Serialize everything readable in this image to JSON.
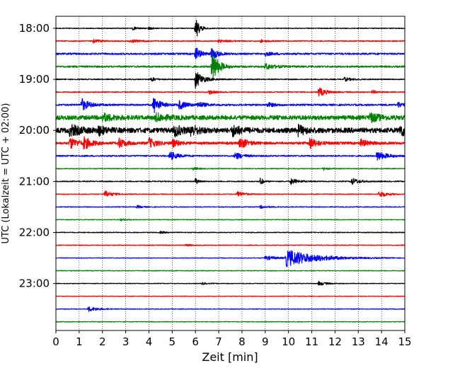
{
  "chart_data": {
    "type": "line",
    "title": "",
    "xlabel": "Zeit  [min]",
    "ylabel": "UTC (Lokalzeit = UTC + 02:00)",
    "xlim": [
      0,
      15
    ],
    "x_ticks": [
      0,
      1,
      2,
      3,
      4,
      5,
      6,
      7,
      8,
      9,
      10,
      11,
      12,
      13,
      14,
      15
    ],
    "y_ticks": [
      "18:00",
      "19:00",
      "20:00",
      "21:00",
      "22:00",
      "23:00"
    ],
    "grid": "vertical dotted lines at each minute",
    "row_interval_min": 15,
    "trace_colors": [
      "#000000",
      "#ff0000",
      "#0000ff",
      "#008000"
    ],
    "rows": [
      {
        "start": "18:00",
        "color": "#000000",
        "noise": 0.12,
        "events": [
          {
            "t": 6.0,
            "amp": 3.6,
            "dur": 0.15
          },
          {
            "t": 3.3,
            "amp": 0.4,
            "dur": 0.2
          },
          {
            "t": 4.0,
            "amp": 0.35,
            "dur": 0.2
          }
        ]
      },
      {
        "start": "18:15",
        "color": "#ff0000",
        "noise": 0.15,
        "events": [
          {
            "t": 1.6,
            "amp": 0.5,
            "dur": 0.3
          },
          {
            "t": 3.2,
            "amp": 0.5,
            "dur": 0.3
          },
          {
            "t": 7.0,
            "amp": 0.5,
            "dur": 0.3
          },
          {
            "t": 8.8,
            "amp": 0.4,
            "dur": 0.3
          }
        ]
      },
      {
        "start": "18:30",
        "color": "#0000ff",
        "noise": 0.25,
        "events": [
          {
            "t": 6.0,
            "amp": 2.0,
            "dur": 0.2
          },
          {
            "t": 6.7,
            "amp": 2.0,
            "dur": 0.2
          },
          {
            "t": 9.0,
            "amp": 0.5,
            "dur": 0.3
          }
        ]
      },
      {
        "start": "18:45",
        "color": "#008000",
        "noise": 0.25,
        "events": [
          {
            "t": 6.7,
            "amp": 5.0,
            "dur": 0.25
          },
          {
            "t": 9.0,
            "amp": 0.8,
            "dur": 0.4
          }
        ]
      },
      {
        "start": "19:00",
        "color": "#000000",
        "noise": 0.15,
        "events": [
          {
            "t": 6.0,
            "amp": 2.5,
            "dur": 0.3
          },
          {
            "t": 4.1,
            "amp": 0.6,
            "dur": 0.2
          },
          {
            "t": 12.4,
            "amp": 0.5,
            "dur": 0.3
          }
        ]
      },
      {
        "start": "19:15",
        "color": "#ff0000",
        "noise": 0.15,
        "events": [
          {
            "t": 11.3,
            "amp": 1.3,
            "dur": 0.3
          },
          {
            "t": 13.6,
            "amp": 0.5,
            "dur": 0.2
          },
          {
            "t": 6.6,
            "amp": 0.6,
            "dur": 0.2
          }
        ]
      },
      {
        "start": "19:30",
        "color": "#0000ff",
        "noise": 0.25,
        "events": [
          {
            "t": 1.1,
            "amp": 1.8,
            "dur": 0.3
          },
          {
            "t": 4.2,
            "amp": 2.5,
            "dur": 0.25
          },
          {
            "t": 5.3,
            "amp": 1.2,
            "dur": 0.3
          },
          {
            "t": 6.1,
            "amp": 0.8,
            "dur": 0.3
          },
          {
            "t": 9.1,
            "amp": 0.6,
            "dur": 0.3
          },
          {
            "t": 14.7,
            "amp": 0.8,
            "dur": 0.3
          }
        ]
      },
      {
        "start": "19:45",
        "color": "#008000",
        "noise": 0.6,
        "events": [
          {
            "t": 2.0,
            "amp": 1.0,
            "dur": 0.4
          },
          {
            "t": 4.3,
            "amp": 1.0,
            "dur": 0.4
          },
          {
            "t": 13.5,
            "amp": 1.2,
            "dur": 0.4
          }
        ]
      },
      {
        "start": "20:00",
        "color": "#000000",
        "noise": 0.7,
        "events": [
          {
            "t": 0.6,
            "amp": 1.5,
            "dur": 0.4
          },
          {
            "t": 1.8,
            "amp": 1.2,
            "dur": 0.3
          },
          {
            "t": 5.1,
            "amp": 1.5,
            "dur": 0.3
          },
          {
            "t": 5.8,
            "amp": 1.3,
            "dur": 0.3
          },
          {
            "t": 7.6,
            "amp": 1.5,
            "dur": 0.3
          },
          {
            "t": 10.4,
            "amp": 1.3,
            "dur": 0.3
          },
          {
            "t": 14.8,
            "amp": 1.5,
            "dur": 0.3
          }
        ]
      },
      {
        "start": "20:15",
        "color": "#ff0000",
        "noise": 0.35,
        "events": [
          {
            "t": 0.6,
            "amp": 1.6,
            "dur": 0.3
          },
          {
            "t": 1.2,
            "amp": 1.6,
            "dur": 0.3
          },
          {
            "t": 2.7,
            "amp": 1.3,
            "dur": 0.3
          },
          {
            "t": 4.0,
            "amp": 1.4,
            "dur": 0.3
          },
          {
            "t": 5.0,
            "amp": 1.0,
            "dur": 0.3
          },
          {
            "t": 7.9,
            "amp": 1.6,
            "dur": 0.3
          },
          {
            "t": 10.9,
            "amp": 1.6,
            "dur": 0.3
          },
          {
            "t": 13.1,
            "amp": 1.0,
            "dur": 0.3
          }
        ]
      },
      {
        "start": "20:30",
        "color": "#0000ff",
        "noise": 0.2,
        "events": [
          {
            "t": 4.9,
            "amp": 1.3,
            "dur": 0.3
          },
          {
            "t": 7.7,
            "amp": 1.0,
            "dur": 0.3
          },
          {
            "t": 13.8,
            "amp": 1.3,
            "dur": 0.4
          }
        ]
      },
      {
        "start": "20:45",
        "color": "#008000",
        "noise": 0.12,
        "events": [
          {
            "t": 5.9,
            "amp": 0.5,
            "dur": 0.2
          },
          {
            "t": 11.5,
            "amp": 0.4,
            "dur": 0.2
          }
        ]
      },
      {
        "start": "21:00",
        "color": "#000000",
        "noise": 0.15,
        "events": [
          {
            "t": 6.0,
            "amp": 1.0,
            "dur": 0.1
          },
          {
            "t": 8.8,
            "amp": 1.2,
            "dur": 0.1
          },
          {
            "t": 10.1,
            "amp": 0.8,
            "dur": 0.3
          },
          {
            "t": 12.7,
            "amp": 1.0,
            "dur": 0.3
          }
        ]
      },
      {
        "start": "21:15",
        "color": "#ff0000",
        "noise": 0.12,
        "events": [
          {
            "t": 2.1,
            "amp": 1.0,
            "dur": 0.3
          },
          {
            "t": 7.8,
            "amp": 0.8,
            "dur": 0.3
          },
          {
            "t": 13.9,
            "amp": 1.0,
            "dur": 0.3
          }
        ]
      },
      {
        "start": "21:30",
        "color": "#0000ff",
        "noise": 0.12,
        "events": [
          {
            "t": 3.5,
            "amp": 0.4,
            "dur": 0.2
          },
          {
            "t": 8.8,
            "amp": 0.4,
            "dur": 0.3
          }
        ]
      },
      {
        "start": "21:45",
        "color": "#008000",
        "noise": 0.1,
        "events": [
          {
            "t": 2.8,
            "amp": 0.3,
            "dur": 0.2
          }
        ]
      },
      {
        "start": "22:00",
        "color": "#000000",
        "noise": 0.12,
        "events": [
          {
            "t": 4.5,
            "amp": 0.3,
            "dur": 0.2
          }
        ]
      },
      {
        "start": "22:15",
        "color": "#ff0000",
        "noise": 0.12,
        "events": [
          {
            "t": 5.6,
            "amp": 0.3,
            "dur": 0.2
          }
        ]
      },
      {
        "start": "22:30",
        "color": "#0000ff",
        "noise": 0.1,
        "events": [
          {
            "t": 9.9,
            "amp": 2.4,
            "dur": 1.2
          },
          {
            "t": 9.0,
            "amp": 0.6,
            "dur": 0.5
          }
        ]
      },
      {
        "start": "22:45",
        "color": "#008000",
        "noise": 0.1,
        "events": []
      },
      {
        "start": "23:00",
        "color": "#000000",
        "noise": 0.1,
        "events": [
          {
            "t": 11.3,
            "amp": 0.6,
            "dur": 0.3
          },
          {
            "t": 6.3,
            "amp": 0.3,
            "dur": 0.2
          }
        ]
      },
      {
        "start": "23:15",
        "color": "#ff0000",
        "noise": 0.1,
        "events": []
      },
      {
        "start": "23:30",
        "color": "#0000ff",
        "noise": 0.1,
        "events": [
          {
            "t": 1.4,
            "amp": 0.7,
            "dur": 0.4
          }
        ]
      },
      {
        "start": "23:45",
        "color": "#008000",
        "noise": 0.1,
        "events": []
      }
    ]
  }
}
